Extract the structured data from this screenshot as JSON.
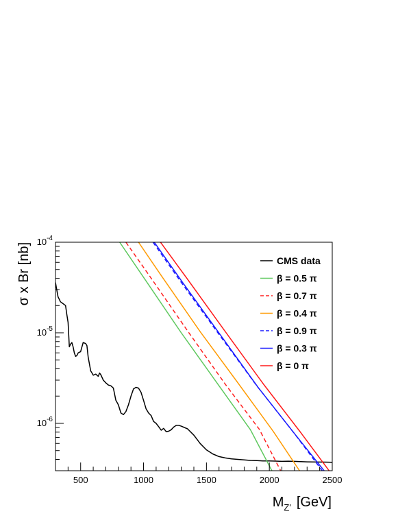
{
  "chart_data": {
    "type": "line",
    "title": "",
    "xlabel": {
      "main": "M",
      "sub": "Z'",
      "unit": "[GeV]"
    },
    "ylabel": "σ x Br  [nb]",
    "xlim": [
      300,
      2500
    ],
    "ylim": [
      3e-07,
      0.0001
    ],
    "yscale": "log",
    "xticks": [
      500,
      1000,
      1500,
      2000,
      2500
    ],
    "yticks": [
      {
        "value": 1e-06,
        "base": "10",
        "exp": "-6"
      },
      {
        "value": 1e-05,
        "base": "10",
        "exp": "-5"
      },
      {
        "value": 0.0001,
        "base": "10",
        "exp": "-4"
      }
    ],
    "legend_position": "top-right",
    "series": [
      {
        "name": "CMS data",
        "color": "#000000",
        "dash": "solid",
        "x": [
          300,
          310,
          320,
          340,
          360,
          380,
          390,
          400,
          410,
          420,
          430,
          440,
          450,
          460,
          470,
          480,
          500,
          520,
          540,
          550,
          560,
          570,
          580,
          590,
          600,
          620,
          640,
          650,
          660,
          680,
          700,
          720,
          740,
          760,
          780,
          800,
          820,
          840,
          860,
          880,
          900,
          920,
          940,
          960,
          980,
          1000,
          1020,
          1040,
          1060,
          1080,
          1100,
          1120,
          1140,
          1160,
          1180,
          1200,
          1220,
          1240,
          1260,
          1280,
          1300,
          1350,
          1400,
          1450,
          1500,
          1550,
          1600,
          1650,
          1700,
          1750,
          1800,
          1850,
          1900,
          1950,
          2000,
          2050,
          2100,
          2150,
          2200,
          2250,
          2300,
          2350,
          2400,
          2450,
          2500
        ],
        "y": [
          3.6e-05,
          3e-05,
          2.5e-05,
          2.2e-05,
          2.1e-05,
          2e-05,
          1.6e-05,
          1.3e-05,
          7e-06,
          7.5e-06,
          7.8e-06,
          7e-06,
          6e-06,
          5.5e-06,
          5.6e-06,
          6e-06,
          6.2e-06,
          7.8e-06,
          7.6e-06,
          7.2e-06,
          5.4e-06,
          4.5e-06,
          3.8e-06,
          3.6e-06,
          3.4e-06,
          3.5e-06,
          3.3e-06,
          3.6e-06,
          3.45e-06,
          3e-06,
          2.8e-06,
          2.65e-06,
          2.6e-06,
          2.45e-06,
          1.8e-06,
          1.6e-06,
          1.3e-06,
          1.25e-06,
          1.35e-06,
          1.6e-06,
          2e-06,
          2.4e-06,
          2.5e-06,
          2.45e-06,
          2.2e-06,
          1.8e-06,
          1.45e-06,
          1.3e-06,
          1.22e-06,
          1.05e-06,
          1e-06,
          9.2e-07,
          8.4e-07,
          8.8e-07,
          8.1e-07,
          8.2e-07,
          8.5e-07,
          9.1e-07,
          9.5e-07,
          9.5e-07,
          9.3e-07,
          8.7e-07,
          7.4e-07,
          6e-07,
          5.1e-07,
          4.6e-07,
          4.3e-07,
          4.15e-07,
          4.05e-07,
          4e-07,
          3.95e-07,
          3.9e-07,
          3.88e-07,
          3.85e-07,
          3.85e-07,
          3.83e-07,
          3.8e-07,
          3.82e-07,
          3.8e-07,
          3.78e-07,
          3.76e-07,
          3.75e-07,
          3.74e-07,
          3.73e-07,
          3.72e-07
        ]
      },
      {
        "name": "β = 0.5 π",
        "color": "#5ec85e",
        "dash": "solid",
        "x": [
          810,
          1000,
          1300,
          1600,
          1850,
          2020
        ],
        "y": [
          0.0001,
          4.1e-05,
          1e-05,
          2.6e-06,
          8.5e-07,
          3e-07
        ]
      },
      {
        "name": "β = 0.7 π",
        "color": "#ff2020",
        "dash": "dashed",
        "x": [
          860,
          1050,
          1350,
          1650,
          1920,
          2090
        ],
        "y": [
          0.0001,
          4.2e-05,
          1.05e-05,
          2.7e-06,
          8.6e-07,
          3e-07
        ]
      },
      {
        "name": "β = 0.4 π",
        "color": "#ff9a00",
        "dash": "solid",
        "x": [
          960,
          1150,
          1450,
          1750,
          2030,
          2240
        ],
        "y": [
          0.0001,
          4.1e-05,
          1.03e-05,
          2.8e-06,
          8.2e-07,
          3e-07
        ]
      },
      {
        "name": "β = 0.9 π",
        "color": "#1a1aff",
        "dash": "dashed",
        "x": [
          1075,
          1300,
          1600,
          1900,
          2200,
          2420
        ],
        "y": [
          0.0001,
          3.6e-05,
          9.6e-06,
          2.6e-06,
          7.7e-07,
          3e-07
        ]
      },
      {
        "name": "β = 0.3 π",
        "color": "#1a1aff",
        "dash": "solid",
        "x": [
          1085,
          1310,
          1610,
          1910,
          2210,
          2435
        ],
        "y": [
          0.0001,
          3.6e-05,
          9.5e-06,
          2.5e-06,
          7.4e-07,
          3e-07
        ]
      },
      {
        "name": "β = 0 π",
        "color": "#ff1a1a",
        "dash": "solid",
        "x": [
          1135,
          1350,
          1650,
          1950,
          2250,
          2475
        ],
        "y": [
          0.0001,
          3.9e-05,
          1.03e-05,
          2.75e-06,
          7.9e-07,
          3e-07
        ]
      }
    ]
  }
}
